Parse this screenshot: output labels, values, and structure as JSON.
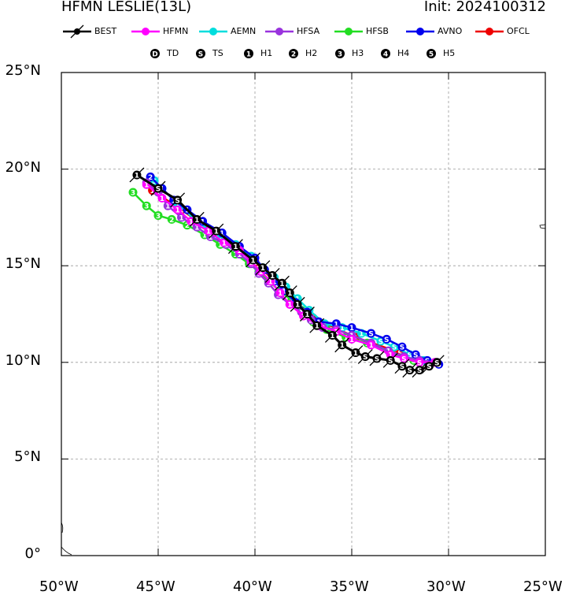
{
  "header": {
    "title": "HFMN LESLIE(13L)",
    "init": "Init: 2024100312"
  },
  "models": [
    {
      "name": "BEST",
      "color": "#000000"
    },
    {
      "name": "HFMN",
      "color": "#ff00ff"
    },
    {
      "name": "AEMN",
      "color": "#00dddd"
    },
    {
      "name": "HFSA",
      "color": "#9933dd"
    },
    {
      "name": "HFSB",
      "color": "#22dd22"
    },
    {
      "name": "AVNO",
      "color": "#0000ee"
    },
    {
      "name": "OFCL",
      "color": "#ee0000"
    }
  ],
  "intensity_legend": [
    {
      "symbol": "D",
      "label": "TD"
    },
    {
      "symbol": "S",
      "label": "TS"
    },
    {
      "symbol": "1",
      "label": "H1"
    },
    {
      "symbol": "2",
      "label": "H2"
    },
    {
      "symbol": "3",
      "label": "H3"
    },
    {
      "symbol": "4",
      "label": "H4"
    },
    {
      "symbol": "5",
      "label": "H5"
    }
  ],
  "axes": {
    "lon_labels": [
      "50°W",
      "45°W",
      "40°W",
      "35°W",
      "30°W",
      "25°W"
    ],
    "lat_labels": [
      "0°",
      "5°N",
      "10°N",
      "15°N",
      "20°N",
      "25°N"
    ],
    "lon_range": [
      -50,
      -25
    ],
    "lat_range": [
      0,
      25
    ],
    "grid": true
  },
  "chart_data": {
    "type": "map-tracks",
    "tracks": [
      {
        "name": "BEST",
        "points": [
          [
            -30.6,
            10.0,
            "S"
          ],
          [
            -31.0,
            9.8,
            "S"
          ],
          [
            -31.5,
            9.6,
            "S"
          ],
          [
            -32.0,
            9.6,
            "S"
          ],
          [
            -32.4,
            9.8,
            "S"
          ],
          [
            -33.0,
            10.1,
            "S"
          ],
          [
            -33.7,
            10.2,
            "S"
          ],
          [
            -34.3,
            10.3,
            "S"
          ],
          [
            -34.8,
            10.5,
            "1"
          ],
          [
            -35.5,
            10.9,
            "1"
          ],
          [
            -36.0,
            11.4,
            "1"
          ],
          [
            -36.8,
            11.9,
            "1"
          ],
          [
            -37.3,
            12.5,
            "1"
          ],
          [
            -37.8,
            13.0,
            "1"
          ],
          [
            -38.2,
            13.6,
            "1"
          ],
          [
            -38.6,
            14.1,
            "1"
          ],
          [
            -39.1,
            14.5,
            "1"
          ],
          [
            -39.6,
            14.9,
            "1"
          ],
          [
            -40.1,
            15.3,
            "1"
          ],
          [
            -41.0,
            16.0,
            "1"
          ],
          [
            -42.0,
            16.8,
            "1"
          ],
          [
            -43.0,
            17.4,
            "1"
          ],
          [
            -44.0,
            18.4,
            "S"
          ],
          [
            -45.0,
            19.0,
            "S"
          ],
          [
            -46.1,
            19.7,
            "1"
          ]
        ]
      },
      {
        "name": "HFMN",
        "points": [
          [
            -30.7,
            10.0,
            "S"
          ],
          [
            -31.5,
            10.0,
            "S"
          ],
          [
            -32.3,
            10.2,
            "S"
          ],
          [
            -33.0,
            10.4,
            "1"
          ],
          [
            -34.0,
            10.9,
            "1"
          ],
          [
            -35.0,
            11.2,
            "1"
          ],
          [
            -35.8,
            11.6,
            "1"
          ],
          [
            -36.7,
            11.9,
            "1"
          ],
          [
            -37.5,
            12.4,
            "1"
          ],
          [
            -38.2,
            13.0,
            "1"
          ],
          [
            -38.7,
            13.6,
            "1"
          ],
          [
            -39.2,
            14.2,
            "1"
          ],
          [
            -39.7,
            14.7,
            "1"
          ],
          [
            -40.2,
            15.2,
            "1"
          ],
          [
            -40.8,
            15.8,
            "1"
          ],
          [
            -41.6,
            16.2,
            "1"
          ],
          [
            -42.4,
            16.8,
            "1"
          ],
          [
            -43.3,
            17.3,
            "1"
          ],
          [
            -44.0,
            17.9,
            "1"
          ],
          [
            -44.8,
            18.5,
            "1"
          ],
          [
            -45.6,
            19.2,
            "1"
          ]
        ]
      },
      {
        "name": "AEMN",
        "points": [
          [
            -30.6,
            10.0,
            "S"
          ],
          [
            -31.3,
            10.1,
            "S"
          ],
          [
            -32.0,
            10.4,
            "S"
          ],
          [
            -32.8,
            10.8,
            "S"
          ],
          [
            -33.5,
            11.1,
            "S"
          ],
          [
            -34.5,
            11.5,
            "1"
          ],
          [
            -35.5,
            11.8,
            "1"
          ],
          [
            -36.4,
            12.0,
            "1"
          ],
          [
            -37.2,
            12.7,
            "1"
          ],
          [
            -37.8,
            13.3,
            "1"
          ],
          [
            -38.4,
            13.9,
            "1"
          ],
          [
            -39.0,
            14.4,
            "1"
          ],
          [
            -39.6,
            14.9,
            "1"
          ],
          [
            -40.2,
            15.5,
            "1"
          ],
          [
            -41.0,
            16.1,
            "1"
          ],
          [
            -42.0,
            16.6,
            "1"
          ],
          [
            -43.0,
            17.3,
            "1"
          ],
          [
            -44.0,
            18.2,
            "1"
          ],
          [
            -44.8,
            19.0,
            "1"
          ],
          [
            -45.2,
            19.4,
            "S"
          ]
        ]
      },
      {
        "name": "HFSA",
        "points": [
          [
            -30.7,
            10.0,
            "S"
          ],
          [
            -31.5,
            10.1,
            "S"
          ],
          [
            -32.3,
            10.3,
            "S"
          ],
          [
            -33.1,
            10.6,
            "1"
          ],
          [
            -34.0,
            11.0,
            "1"
          ],
          [
            -35.0,
            11.4,
            "1"
          ],
          [
            -35.8,
            11.7,
            "1"
          ],
          [
            -36.5,
            11.8,
            "2"
          ],
          [
            -37.1,
            12.2,
            "2"
          ],
          [
            -37.6,
            12.6,
            "1"
          ],
          [
            -38.2,
            13.0,
            "1"
          ],
          [
            -38.8,
            13.5,
            "1"
          ],
          [
            -39.3,
            14.1,
            "1"
          ],
          [
            -39.8,
            14.6,
            "1"
          ],
          [
            -40.2,
            15.1,
            "1"
          ],
          [
            -40.8,
            15.6,
            "1"
          ],
          [
            -41.5,
            16.1,
            "1"
          ],
          [
            -42.3,
            16.5,
            "1"
          ],
          [
            -43.0,
            17.0,
            "1"
          ],
          [
            -43.8,
            17.5,
            "1"
          ],
          [
            -44.5,
            18.1,
            "1"
          ],
          [
            -45.0,
            18.8,
            "1"
          ],
          [
            -45.6,
            19.3,
            "1"
          ]
        ]
      },
      {
        "name": "HFSB",
        "points": [
          [
            -30.7,
            10.0,
            "S"
          ],
          [
            -31.8,
            10.1,
            "S"
          ],
          [
            -33.0,
            10.5,
            "1"
          ],
          [
            -34.2,
            11.0,
            "1"
          ],
          [
            -35.3,
            11.3,
            "1"
          ],
          [
            -36.3,
            11.7,
            "1"
          ],
          [
            -37.0,
            12.1,
            "1"
          ],
          [
            -37.6,
            12.7,
            "1"
          ],
          [
            -38.1,
            13.2,
            "1"
          ],
          [
            -38.7,
            13.7,
            "1"
          ],
          [
            -39.3,
            14.2,
            "1"
          ],
          [
            -39.8,
            14.7,
            "1"
          ],
          [
            -40.3,
            15.1,
            "1"
          ],
          [
            -41.0,
            15.6,
            "1"
          ],
          [
            -41.8,
            16.1,
            "1"
          ],
          [
            -42.6,
            16.6,
            "1"
          ],
          [
            -43.5,
            17.1,
            "2"
          ],
          [
            -44.3,
            17.4,
            "2"
          ],
          [
            -45.0,
            17.6,
            "3"
          ],
          [
            -45.6,
            18.1,
            "3"
          ],
          [
            -46.3,
            18.8,
            "3"
          ]
        ]
      },
      {
        "name": "AVNO",
        "points": [
          [
            -30.5,
            9.9,
            "S"
          ],
          [
            -31.1,
            10.1,
            "S"
          ],
          [
            -31.7,
            10.4,
            "S"
          ],
          [
            -32.4,
            10.8,
            "S"
          ],
          [
            -33.2,
            11.2,
            "S"
          ],
          [
            -34.0,
            11.5,
            "S"
          ],
          [
            -35.0,
            11.8,
            "1"
          ],
          [
            -35.8,
            12.0,
            "1"
          ],
          [
            -36.7,
            12.1,
            "1"
          ],
          [
            -37.3,
            12.6,
            "1"
          ],
          [
            -37.9,
            13.1,
            "1"
          ],
          [
            -38.5,
            13.7,
            "1"
          ],
          [
            -39.0,
            14.2,
            "1"
          ],
          [
            -39.5,
            14.8,
            "1"
          ],
          [
            -40.0,
            15.4,
            "1"
          ],
          [
            -40.8,
            16.0,
            "1"
          ],
          [
            -41.7,
            16.7,
            "1"
          ],
          [
            -42.7,
            17.3,
            "1"
          ],
          [
            -43.5,
            17.9,
            "1"
          ],
          [
            -44.2,
            18.4,
            "1"
          ],
          [
            -44.8,
            19.0,
            "1"
          ],
          [
            -45.4,
            19.6,
            "2"
          ]
        ]
      },
      {
        "name": "OFCL",
        "points": [
          [
            -30.6,
            10.0,
            "S"
          ],
          [
            -32.5,
            10.5,
            "S"
          ],
          [
            -34.8,
            11.3,
            "1"
          ],
          [
            -37.0,
            12.3,
            "1"
          ],
          [
            -38.6,
            13.8,
            "1"
          ],
          [
            -40.0,
            15.2,
            "1"
          ],
          [
            -41.8,
            16.5,
            "1"
          ],
          [
            -43.8,
            17.9,
            "1"
          ],
          [
            -45.3,
            18.9,
            "1"
          ]
        ]
      }
    ]
  }
}
